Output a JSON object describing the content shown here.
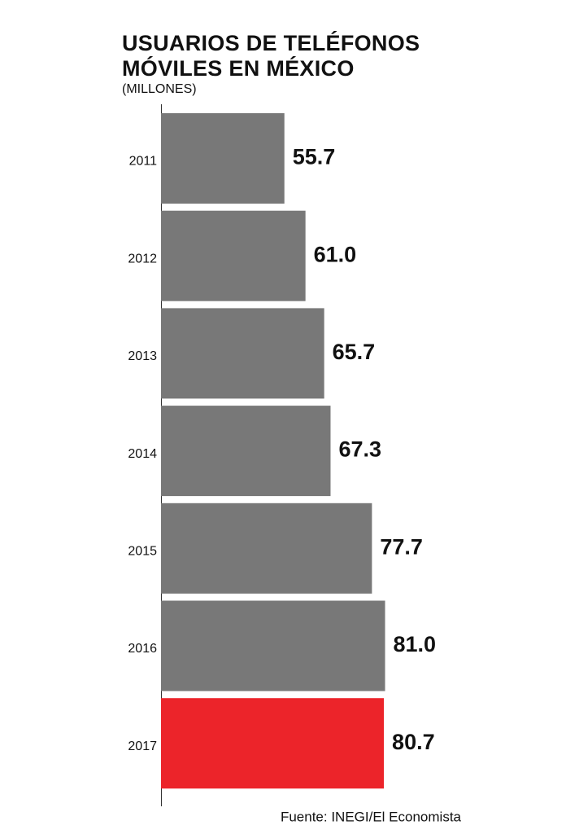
{
  "chart_data": {
    "type": "bar",
    "orientation": "horizontal",
    "title_lines": [
      "USUARIOS DE TELÉFONOS",
      "MÓVILES EN MÉXICO"
    ],
    "subtitle": "(MILLONES)",
    "categories": [
      "2011",
      "2012",
      "2013",
      "2014",
      "2015",
      "2016",
      "2017"
    ],
    "values": [
      55.7,
      61.0,
      65.7,
      67.3,
      77.7,
      81.0,
      80.7
    ],
    "value_labels": [
      "55.7",
      "61.0",
      "65.7",
      "67.3",
      "77.7",
      "81.0",
      "80.7"
    ],
    "colors": [
      "#787878",
      "#787878",
      "#787878",
      "#787878",
      "#787878",
      "#787878",
      "#ec242a"
    ],
    "xlim": [
      24.7,
      86
    ],
    "source": "Fuente: INEGI/El Economista"
  }
}
